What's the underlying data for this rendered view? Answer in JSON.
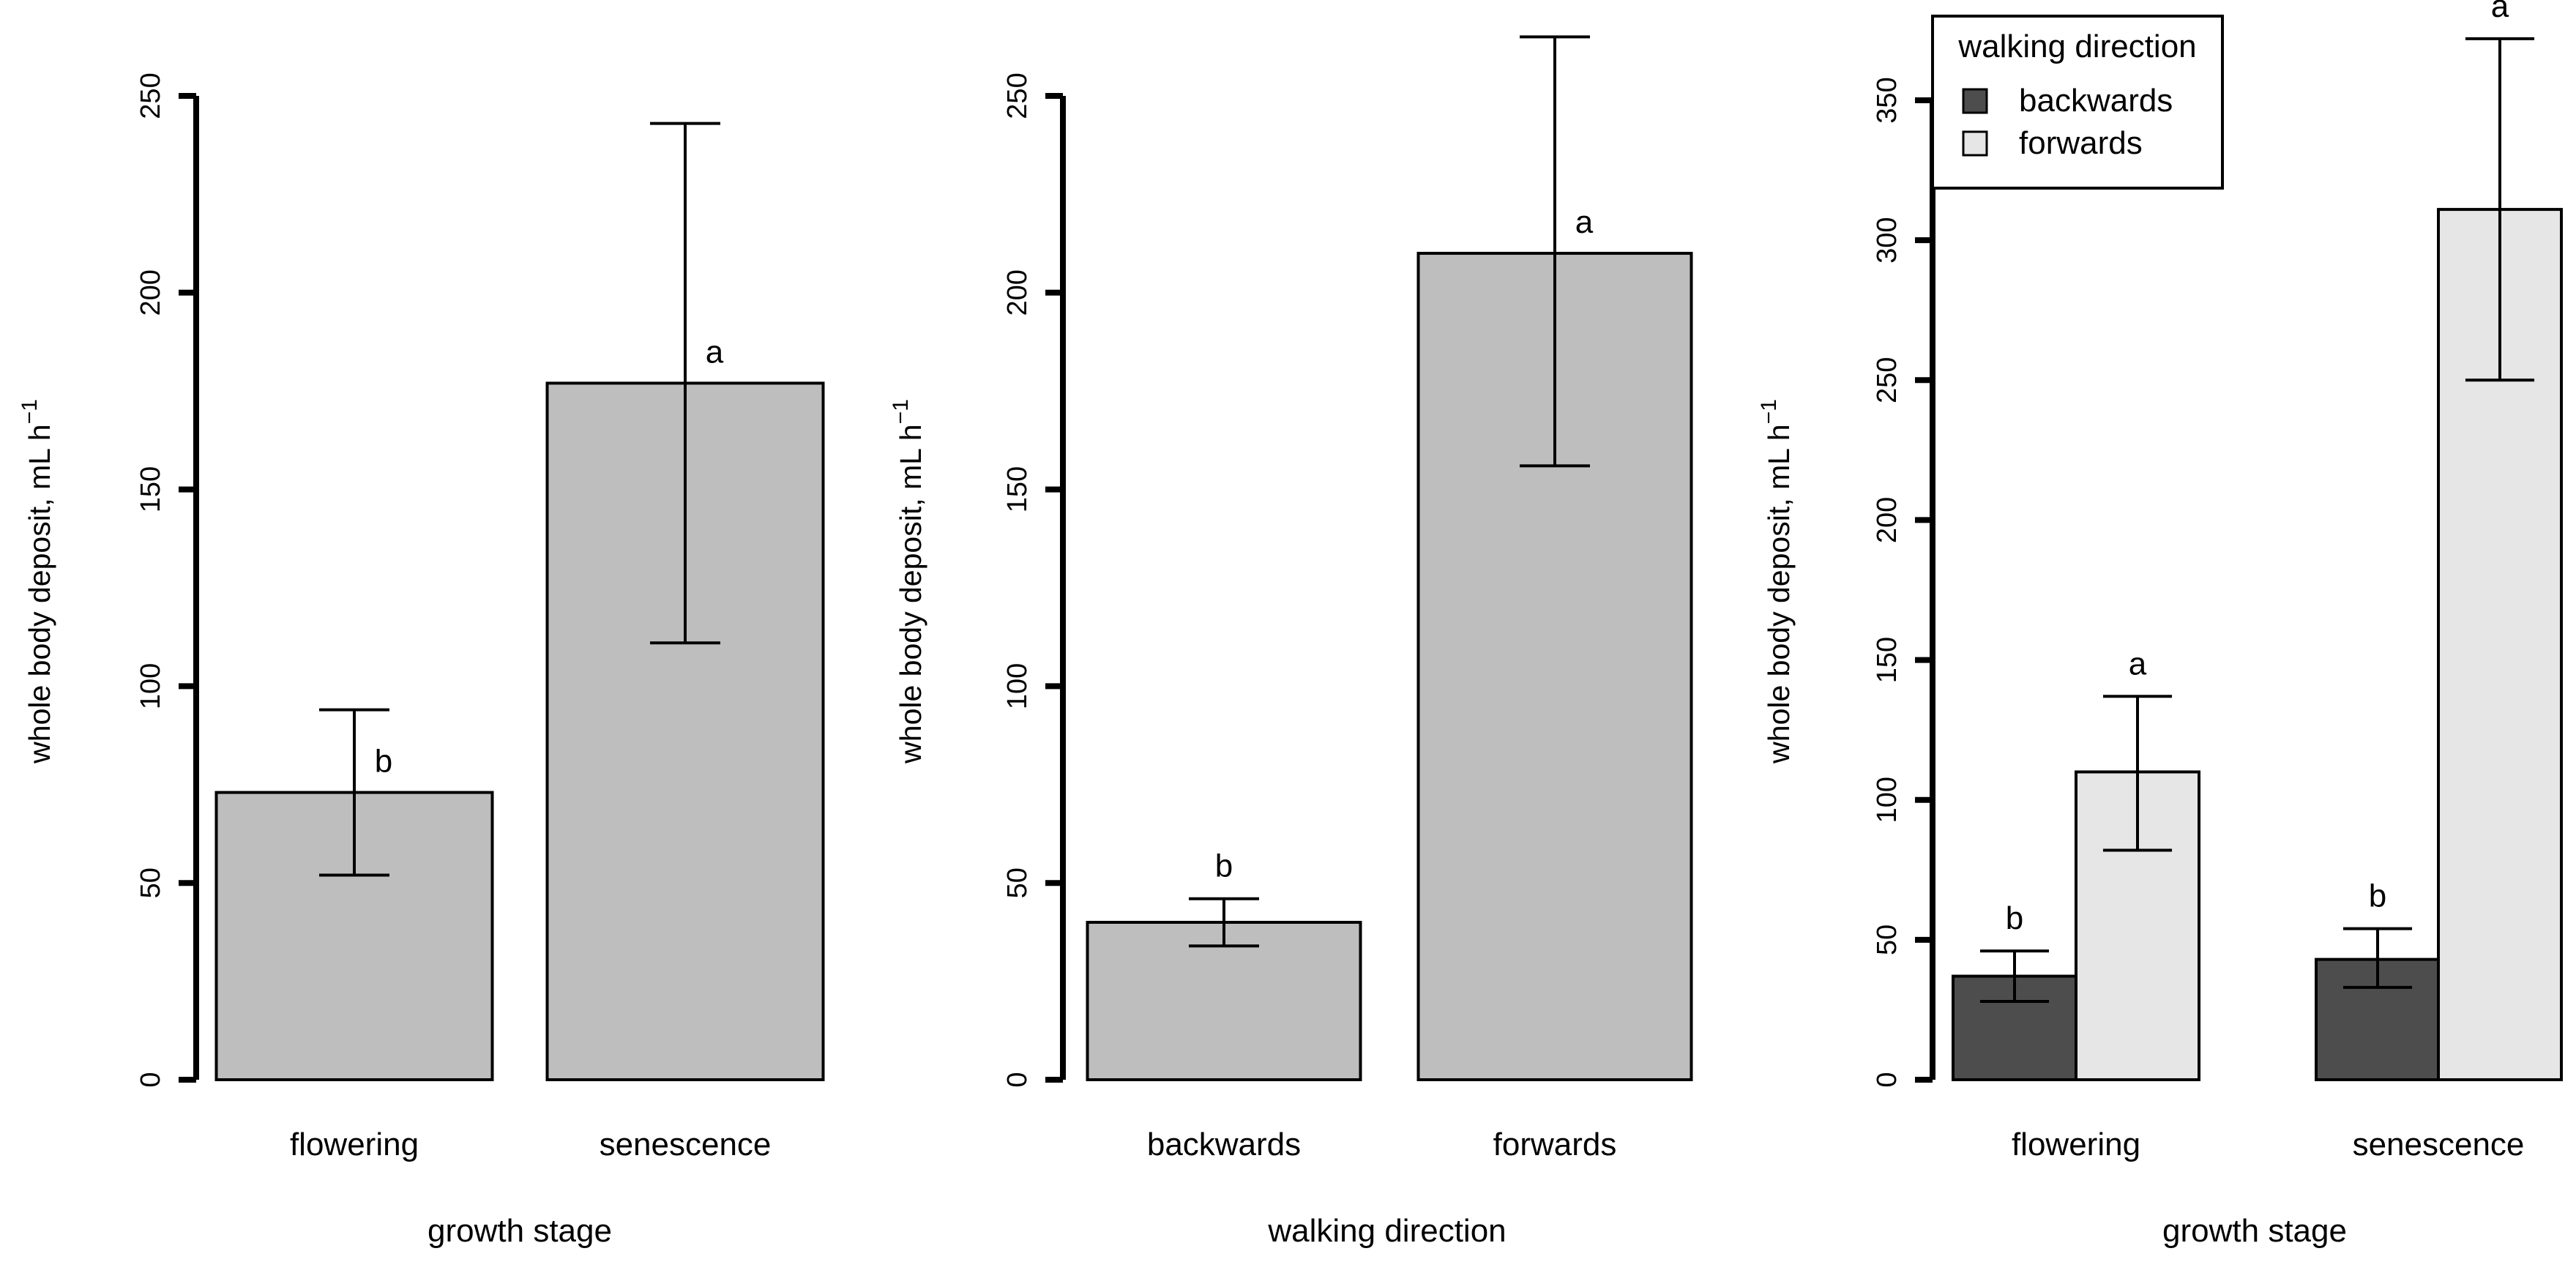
{
  "colors": {
    "single": "#bebebe",
    "backwards": "#4d4d4d",
    "forwards": "#e6e6e6",
    "axis": "#000000"
  },
  "chart_data": [
    {
      "type": "bar",
      "title": "",
      "xlabel": "growth stage",
      "ylabel": "whole body deposit,  mL h",
      "ylabel_sup": "−1",
      "ylim": [
        0,
        250
      ],
      "yticks": [
        0,
        50,
        100,
        150,
        200,
        250
      ],
      "grid": false,
      "categories": [
        "flowering",
        "senescence"
      ],
      "series": [
        {
          "name": "",
          "colorKey": "single",
          "values": [
            73,
            177
          ],
          "err_low": [
            52,
            111
          ],
          "err_high": [
            94,
            243
          ],
          "sig": [
            "b",
            "a"
          ]
        }
      ]
    },
    {
      "type": "bar",
      "title": "",
      "xlabel": "walking direction",
      "ylabel": "whole body deposit,  mL h",
      "ylabel_sup": "−1",
      "ylim": [
        0,
        250
      ],
      "yticks": [
        0,
        50,
        100,
        150,
        200,
        250
      ],
      "grid": false,
      "categories": [
        "backwards",
        "forwards"
      ],
      "series": [
        {
          "name": "",
          "colorKey": "single",
          "values": [
            40,
            210
          ],
          "err_low": [
            34,
            156
          ],
          "err_high": [
            46,
            265
          ],
          "sig": [
            "b",
            "a"
          ]
        }
      ]
    },
    {
      "type": "bar",
      "title": "",
      "xlabel": "growth stage",
      "ylabel": "whole body deposit,  mL h",
      "ylabel_sup": "−1",
      "ylim": [
        0,
        350
      ],
      "yticks": [
        0,
        50,
        100,
        150,
        200,
        250,
        300,
        350
      ],
      "grid": false,
      "categories": [
        "flowering",
        "senescence"
      ],
      "legend": {
        "title": "walking direction",
        "position": "top-left"
      },
      "series": [
        {
          "name": "backwards",
          "colorKey": "backwards",
          "values": [
            37,
            43
          ],
          "err_low": [
            28,
            33
          ],
          "err_high": [
            46,
            54
          ],
          "sig": [
            "b",
            "b"
          ]
        },
        {
          "name": "forwards",
          "colorKey": "forwards",
          "values": [
            110,
            311
          ],
          "err_low": [
            82,
            250
          ],
          "err_high": [
            137,
            372
          ],
          "sig": [
            "a",
            "a"
          ]
        }
      ]
    }
  ]
}
